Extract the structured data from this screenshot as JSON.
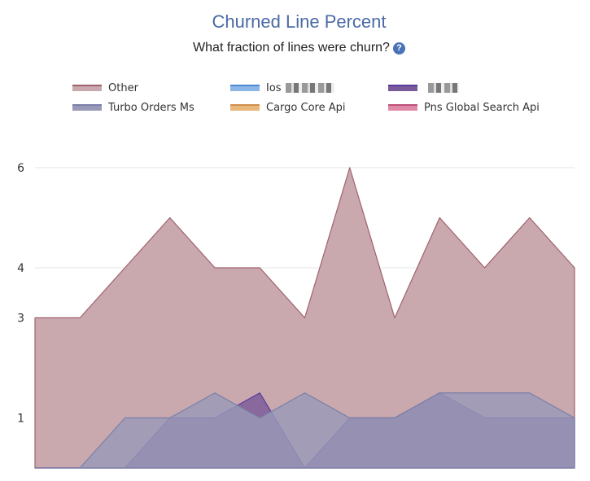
{
  "title": "Churned Line Percent",
  "subtitle": "What fraction of lines were churn?",
  "help_icon": "question-circle-icon",
  "chart_data": {
    "type": "area",
    "title": "Churned Line Percent",
    "subtitle": "What fraction of lines were churn?",
    "xlabel": "",
    "ylabel": "",
    "ylim": [
      0,
      6
    ],
    "y_ticks": [
      1,
      3,
      4,
      6
    ],
    "grid": true,
    "legend_position": "top",
    "x": [
      0,
      1,
      2,
      3,
      4,
      5,
      6,
      7,
      8,
      9,
      10,
      11,
      12
    ],
    "series": [
      {
        "name": "Other",
        "color": "#a0616f",
        "fill": "#c9a8ae",
        "values": [
          3,
          3,
          4,
          5,
          4,
          4,
          3,
          6,
          3,
          5,
          4,
          5,
          4
        ]
      },
      {
        "name": "Ios",
        "redacted": true,
        "color": "#4a8ad0",
        "fill": "#8db6e8",
        "values": [
          0,
          0,
          0,
          0,
          0,
          0,
          0,
          0,
          0,
          0,
          0,
          0,
          0
        ]
      },
      {
        "name": "",
        "redacted": true,
        "color": "#5a3a9a",
        "fill": "#7a5a9a",
        "values": [
          0,
          0,
          0,
          1,
          1,
          1.5,
          0,
          1,
          1,
          1.5,
          1,
          1,
          1
        ]
      },
      {
        "name": "Turbo Orders Ms",
        "color": "#7a80a8",
        "fill": "#9a9ab8",
        "values": [
          0,
          0,
          1,
          1,
          1.5,
          1,
          1.5,
          1,
          1,
          1.5,
          1.5,
          1.5,
          1
        ]
      },
      {
        "name": "Cargo Core Api",
        "color": "#d09050",
        "fill": "#e8b87a",
        "values": [
          0,
          0,
          0,
          0,
          0,
          0,
          0,
          0,
          0,
          0,
          0,
          0,
          0
        ]
      },
      {
        "name": "Pns Global Search Api",
        "color": "#c0507a",
        "fill": "#e08aa8",
        "values": [
          0,
          0,
          0,
          0,
          0,
          0,
          0,
          0,
          0,
          0,
          0,
          0,
          0
        ]
      }
    ]
  }
}
